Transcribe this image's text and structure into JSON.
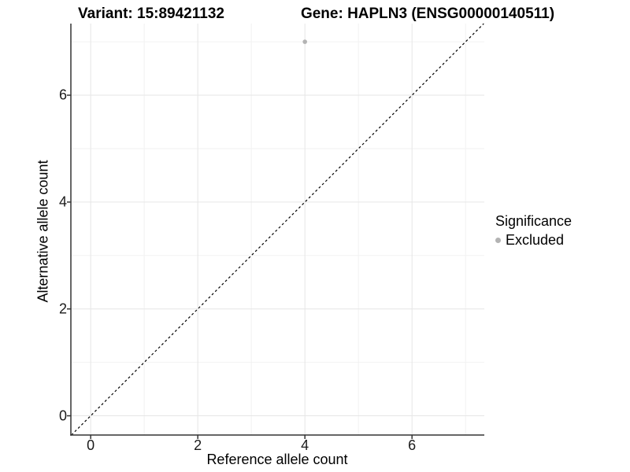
{
  "header": {
    "variant_title": "Variant: 15:89421132",
    "gene_title": "Gene: HAPLN3 (ENSG00000140511)"
  },
  "legend": {
    "title": "Significance",
    "items": [
      {
        "label": "Excluded",
        "color": "#b3b3b3",
        "key_icon": "dot-icon"
      }
    ]
  },
  "colors": {
    "background": "#ffffff",
    "point": "#b3b3b3",
    "grid_major": "#e6e6e6",
    "grid_minor": "#f2f2f2",
    "axis": "#333333",
    "reference_line": "#000000",
    "text": "#000000"
  },
  "chart_data": {
    "type": "scatter",
    "title": "Variant: 15:89421132   |   Gene: HAPLN3 (ENSG00000140511)",
    "xlabel": "Reference allele count",
    "ylabel": "Alternative allele count",
    "xlim": [
      -0.37,
      7.35
    ],
    "ylim": [
      -0.36,
      7.34
    ],
    "x_ticks": [
      0,
      2,
      4,
      6
    ],
    "y_ticks": [
      0,
      2,
      4,
      6
    ],
    "x_minor_grid": [
      1,
      3,
      5,
      7
    ],
    "y_minor_grid": [
      1,
      3,
      5,
      7
    ],
    "grid": "on",
    "legend_position": "right",
    "series": [
      {
        "name": "Excluded",
        "color": "#b3b3b3",
        "points": [
          {
            "x": 4,
            "y": 7
          }
        ]
      }
    ],
    "reference_line": {
      "type": "identity",
      "slope": 1,
      "intercept": 0,
      "style": "dashed",
      "color": "#000000"
    }
  }
}
